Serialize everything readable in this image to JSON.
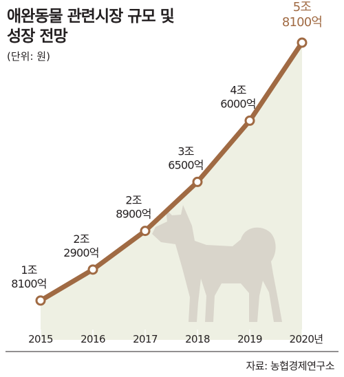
{
  "title": {
    "line1": "애완동물 관련시장 규모 및",
    "line2": "성장 전망"
  },
  "unit_note": "(단위: 원)",
  "source": "자료: 농협경제연구소",
  "colors": {
    "line": "#a06a43",
    "area": "#eef0e3",
    "dog": "#d9d5cb",
    "highlight_label": "#a06a43",
    "text": "#231f20"
  },
  "icons": {
    "decoration": "dog-silhouette-icon"
  },
  "chart_data": {
    "type": "line",
    "title": "애완동물 관련시장 규모 및 성장 전망",
    "xlabel": "",
    "ylabel": "",
    "unit": "원",
    "x": [
      "2015",
      "2016",
      "2017",
      "2018",
      "2019",
      "2020년"
    ],
    "values": [
      18100,
      22900,
      28900,
      36500,
      46000,
      58100
    ],
    "value_unit": "억원",
    "labels": [
      [
        "1조",
        "8100억"
      ],
      [
        "2조",
        "2900억"
      ],
      [
        "2조",
        "8900억"
      ],
      [
        "3조",
        "6500억"
      ],
      [
        "4조",
        "6000억"
      ],
      [
        "5조",
        "8100억"
      ]
    ],
    "highlight_index": 5,
    "ylim": [
      12000,
      58100
    ],
    "grid": false,
    "legend": "none"
  }
}
